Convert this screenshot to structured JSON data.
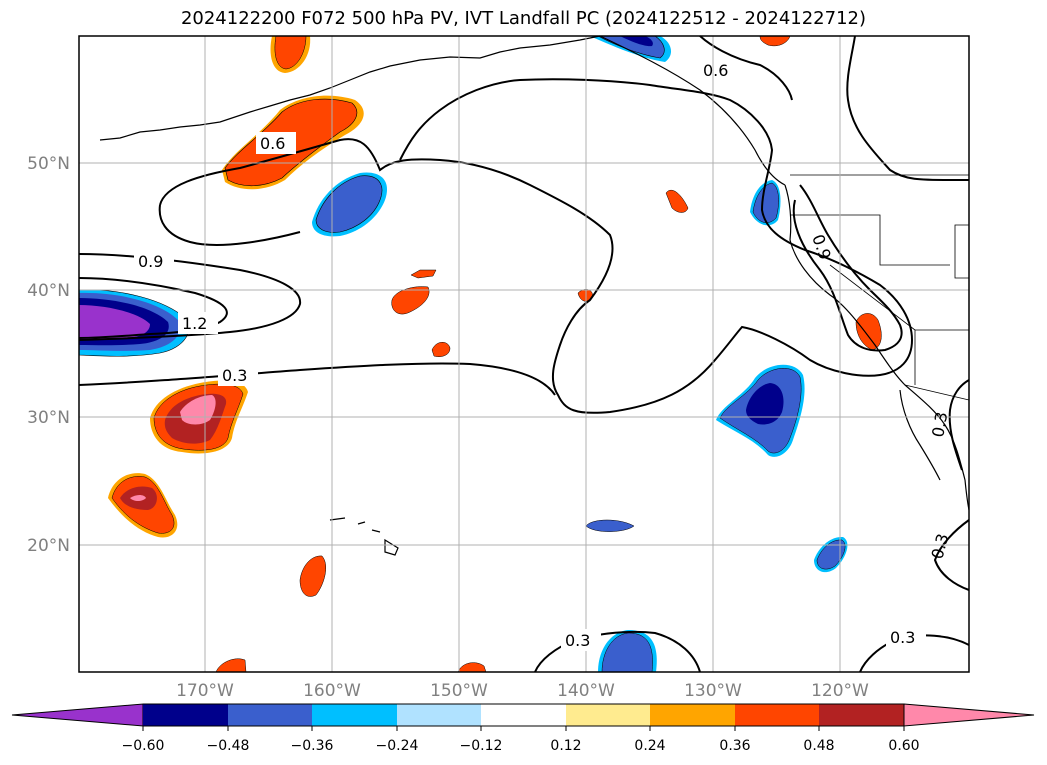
{
  "title": "2024122200 F072 500 hPa PV, IVT Landfall PC (2024122512 - 2024122712)",
  "map": {
    "lon_labels": [
      "170°W",
      "160°W",
      "150°W",
      "140°W",
      "130°W",
      "120°W"
    ],
    "lat_labels": [
      "50°N",
      "40°N",
      "30°N",
      "20°N"
    ],
    "contour_labels": [
      "0.9",
      "1.2",
      "0.6",
      "0.3",
      "0.6",
      "0.9",
      "0.3",
      "0.3",
      "0.3",
      "0.3"
    ]
  },
  "colorbar": {
    "levels": [
      "−0.60",
      "−0.48",
      "−0.36",
      "−0.24",
      "−0.12",
      "0.12",
      "0.24",
      "0.36",
      "0.48",
      "0.60"
    ],
    "colors": [
      "#9932cc",
      "#00008b",
      "#3a5fcd",
      "#00bfff",
      "#b0e2ff",
      "#ffffff",
      "#ffeb8f",
      "#ffa500",
      "#ff4500",
      "#b22222",
      "#ff88aa"
    ]
  }
}
